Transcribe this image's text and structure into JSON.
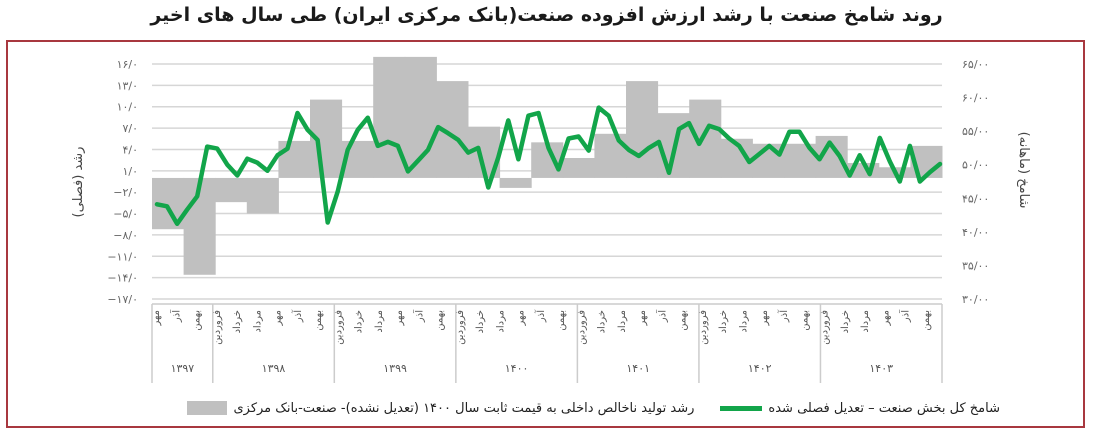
{
  "title": "روند شامخ صنعت با رشد ارزش افزوده صنعت(بانک مرکزی ایران) طی سال های اخیر",
  "colors": {
    "frame": "#a8383f",
    "line": "#12a54a",
    "bar": "#c0c0c0",
    "grid": "#d6d6d6"
  },
  "axes": {
    "left_label": "رشد (فصلی)",
    "right_label": "شامخ (ماهانه)",
    "left_ticks": [
      "۱۶/۰",
      "۱۳/۰",
      "۱۰/۰",
      "۷/۰",
      "۴/۰",
      "۱/۰",
      "−۲/۰",
      "−۵/۰",
      "−۸/۰",
      "−۱۱/۰",
      "−۱۴/۰",
      "−۱۷/۰"
    ],
    "right_ticks": [
      "۶۵/۰۰",
      "۶۰/۰۰",
      "۵۵/۰۰",
      "۵۰/۰۰",
      "۴۵/۰۰",
      "۴۰/۰۰",
      "۳۵/۰۰",
      "۳۰/۰۰"
    ]
  },
  "years": [
    {
      "label": "۱۳۹۷",
      "months": [
        "مهر",
        "آذر",
        "بهمن"
      ]
    },
    {
      "label": "۱۳۹۸",
      "months": [
        "فروردین",
        "خرداد",
        "مرداد",
        "مهر",
        "آذر",
        "بهمن"
      ]
    },
    {
      "label": "۱۳۹۹",
      "months": [
        "فروردین",
        "خرداد",
        "مرداد",
        "مهر",
        "آذر",
        "بهمن"
      ]
    },
    {
      "label": "۱۴۰۰",
      "months": [
        "فروردین",
        "خرداد",
        "مرداد",
        "مهر",
        "آذر",
        "بهمن"
      ]
    },
    {
      "label": "۱۴۰۱",
      "months": [
        "فروردین",
        "خرداد",
        "مرداد",
        "مهر",
        "آذر",
        "بهمن"
      ]
    },
    {
      "label": "۱۴۰۲",
      "months": [
        "فروردین",
        "خرداد",
        "مرداد",
        "مهر",
        "آذر",
        "بهمن"
      ]
    },
    {
      "label": "۱۴۰۳",
      "months": [
        "فروردین",
        "خرداد",
        "مرداد",
        "مهر",
        "آذر",
        "بهمن"
      ]
    }
  ],
  "legend": {
    "line": "شامخ کل بخش صنعت – تعدیل فصلی شده",
    "bar": "رشد تولید ناخالص داخلی به قیمت ثابت سال ۱۴۰۰ (تعدیل نشده)- صنعت-بانک مرکزی"
  },
  "chart_data": {
    "type": "bar+line",
    "title": "روند شامخ صنعت با رشد ارزش افزوده صنعت(بانک مرکزی ایران) طی سال های اخیر",
    "ylabel_left": "رشد (فصلی)",
    "ylabel_right": "شامخ (ماهانه)",
    "ylim_left": [
      -17,
      16
    ],
    "ylim_right": [
      30,
      65
    ],
    "grid": true,
    "legend_position": "bottom",
    "categories_years": [
      "1397",
      "1398",
      "1399",
      "1400",
      "1401",
      "1402",
      "1403"
    ],
    "series": [
      {
        "name": "رشد تولید ناخالص داخلی به قیمت ثابت سال ۱۴۰۰ (تعدیل نشده)- صنعت-بانک مرکزی",
        "type": "bar",
        "axis": "left",
        "quarters": [
          "1397Q3",
          "1397Q4",
          "1398Q1",
          "1398Q2",
          "1398Q3",
          "1398Q4",
          "1399Q1",
          "1399Q2",
          "1399Q3",
          "1399Q4",
          "1400Q1",
          "1400Q2",
          "1400Q3",
          "1400Q4",
          "1401Q1",
          "1401Q2",
          "1401Q3",
          "1401Q4",
          "1402Q1",
          "1402Q2",
          "1402Q3",
          "1402Q4",
          "1403Q1",
          "1403Q2",
          "1403Q3"
        ],
        "values": [
          -7.2,
          -13.6,
          -3.4,
          -5.0,
          5.2,
          11.0,
          5.2,
          17.0,
          17.0,
          13.6,
          7.2,
          -1.4,
          5.0,
          2.8,
          6.2,
          13.6,
          9.1,
          11.0,
          5.5,
          4.8,
          4.8,
          5.9,
          2.1,
          1.5,
          4.5
        ]
      },
      {
        "name": "شامخ کل بخش صنعت – تعدیل فصلی شده",
        "type": "line",
        "axis": "right",
        "values": [
          44.1,
          43.8,
          41.2,
          43.3,
          45.3,
          52.7,
          52.4,
          50.0,
          48.4,
          50.9,
          50.3,
          49.1,
          51.4,
          52.4,
          57.7,
          55.2,
          53.7,
          41.4,
          46.0,
          52.2,
          55.2,
          57.0,
          52.8,
          53.4,
          52.8,
          49.0,
          50.6,
          52.2,
          55.6,
          54.7,
          53.7,
          51.8,
          52.5,
          46.6,
          51.1,
          56.6,
          50.8,
          57.3,
          57.7,
          52.5,
          49.3,
          53.9,
          54.2,
          52.1,
          58.5,
          57.3,
          53.6,
          52.2,
          51.3,
          52.5,
          53.4,
          48.8,
          55.3,
          56.2,
          53.1,
          55.8,
          55.3,
          53.9,
          52.8,
          50.4,
          51.6,
          52.8,
          51.5,
          54.9,
          54.9,
          52.5,
          50.8,
          53.3,
          51.3,
          48.4,
          51.4,
          48.6,
          54.0,
          50.5,
          47.5,
          52.8,
          47.5,
          48.9,
          50.1
        ]
      }
    ]
  }
}
